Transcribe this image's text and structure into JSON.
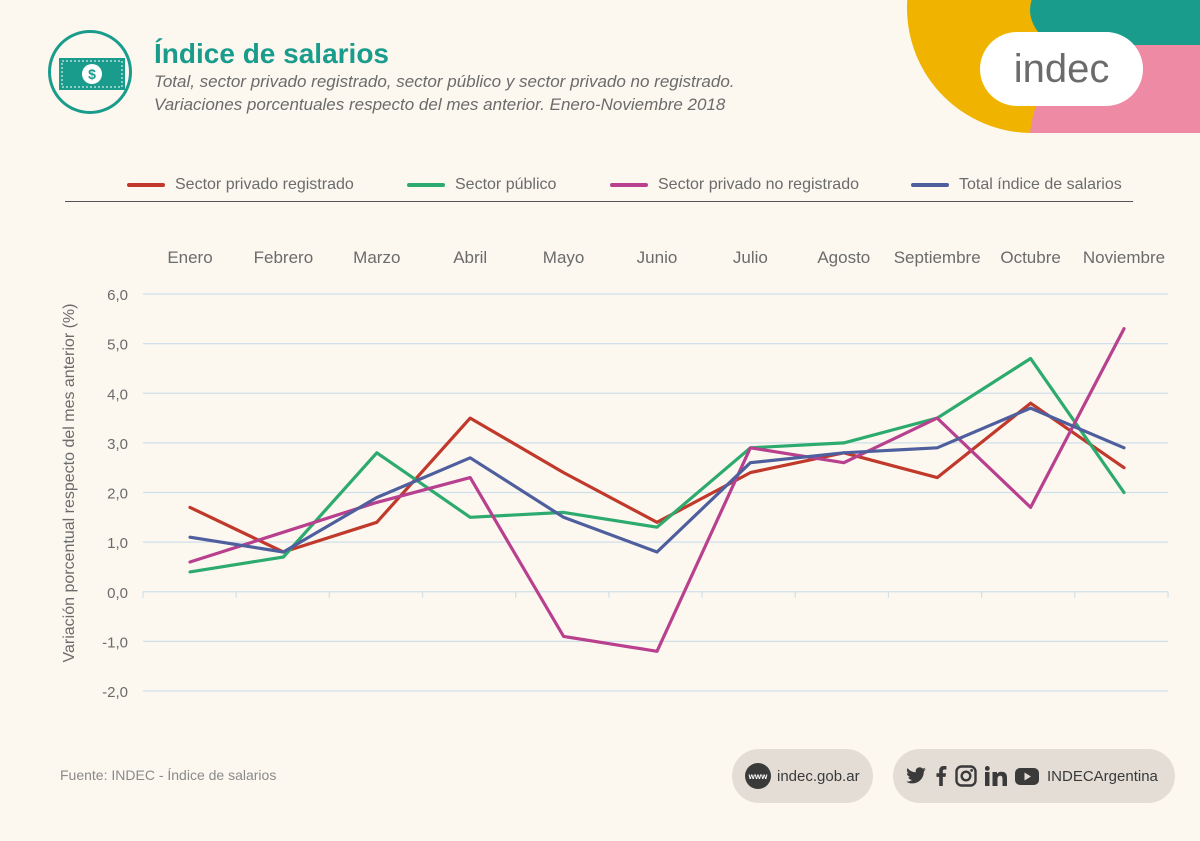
{
  "header": {
    "title": "Índice de salarios",
    "subtitle_line1": "Total, sector privado registrado, sector público y sector privado no registrado.",
    "subtitle_line2": "Variaciones porcentuales respecto del mes anterior. Enero-Noviembre 2018",
    "icon": "money-bill-icon"
  },
  "brand": {
    "logo_text": "indec"
  },
  "colors": {
    "teal": "#1a9c8c",
    "yellow": "#f0b400",
    "pink": "#ef8aa5",
    "background": "#fcf8f0"
  },
  "chart_data": {
    "type": "line",
    "title": "",
    "xlabel": "",
    "ylabel": "Variación porcentual respecto del mes anterior (%)",
    "categories": [
      "Enero",
      "Febrero",
      "Marzo",
      "Abril",
      "Mayo",
      "Junio",
      "Julio",
      "Agosto",
      "Septiembre",
      "Octubre",
      "Noviembre"
    ],
    "ylim": [
      -2,
      6
    ],
    "yticks": [
      "6,0",
      "5,0",
      "4,0",
      "3,0",
      "2,0",
      "1,0",
      "0,0",
      "-1,0",
      "-2,0"
    ],
    "ytick_values": [
      6,
      5,
      4,
      3,
      2,
      1,
      0,
      -1,
      -2
    ],
    "grid": true,
    "legend_position": "top",
    "series": [
      {
        "name": "Sector privado registrado",
        "color": "#c0392b",
        "values": [
          1.7,
          0.8,
          1.4,
          3.5,
          2.4,
          1.4,
          2.4,
          2.8,
          2.3,
          3.8,
          2.5
        ]
      },
      {
        "name": "Sector público",
        "color": "#2daa6e",
        "values": [
          0.4,
          0.7,
          2.8,
          1.5,
          1.6,
          1.3,
          2.9,
          3.0,
          3.5,
          4.7,
          2.0
        ]
      },
      {
        "name": "Sector privado no registrado",
        "color": "#b8408e",
        "values": [
          0.6,
          1.2,
          1.8,
          2.3,
          -0.9,
          -1.2,
          2.9,
          2.6,
          3.5,
          1.7,
          5.3
        ]
      },
      {
        "name": "Total índice de salarios",
        "color": "#4f5f9e",
        "values": [
          1.1,
          0.8,
          1.9,
          2.7,
          1.5,
          0.8,
          2.6,
          2.8,
          2.9,
          3.7,
          2.9
        ]
      }
    ]
  },
  "footer": {
    "source": "Fuente: INDEC - Índice de salarios",
    "web_icon_text": "www",
    "web": "indec.gob.ar",
    "social_handle": "INDECArgentina",
    "social_icons": [
      "twitter-icon",
      "facebook-icon",
      "instagram-icon",
      "linkedin-icon",
      "youtube-icon"
    ]
  }
}
